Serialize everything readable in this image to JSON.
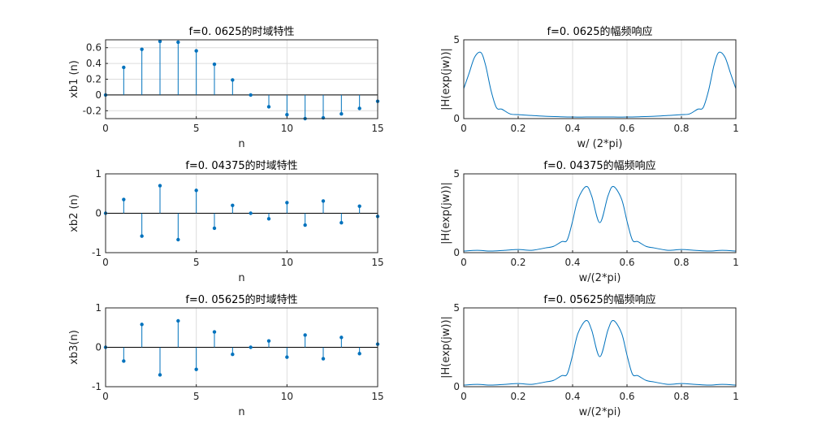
{
  "chart_data": [
    {
      "type": "stem",
      "title": "f=0. 0625的时域特性",
      "xlabel": "n",
      "ylabel": "xb1 (n)",
      "xlim": [
        0,
        15
      ],
      "ylim": [
        -0.3,
        0.7
      ],
      "xticks": [
        0,
        5,
        10,
        15
      ],
      "xticklabels": [
        "0",
        "5",
        "10",
        "15"
      ],
      "yticks": [
        -0.2,
        0,
        0.2,
        0.4,
        0.6
      ],
      "yticklabels": [
        "-0.2",
        "0",
        "0.2",
        "0.4",
        "0.6"
      ],
      "x": [
        0,
        1,
        2,
        3,
        4,
        5,
        6,
        7,
        8,
        9,
        10,
        11,
        12,
        13,
        14,
        15
      ],
      "values": [
        0,
        0.35,
        0.58,
        0.68,
        0.67,
        0.56,
        0.39,
        0.19,
        0,
        -0.15,
        -0.25,
        -0.3,
        -0.29,
        -0.24,
        -0.17,
        -0.08
      ]
    },
    {
      "type": "line",
      "title": "f=0. 0625的幅频响应",
      "xlabel": "w/ (2*pi)",
      "ylabel": "|H(exp(jw))|",
      "xlim": [
        0,
        1
      ],
      "ylim": [
        0,
        5
      ],
      "xticks": [
        0,
        0.2,
        0.4,
        0.6,
        0.8,
        1
      ],
      "xticklabels": [
        "0",
        "0.2",
        "0.4",
        "0.6",
        "0.8",
        "1"
      ],
      "yticks": [
        0,
        5
      ],
      "yticklabels": [
        "0",
        "5"
      ],
      "x": [
        0,
        0.02,
        0.04,
        0.0625,
        0.08,
        0.1,
        0.12,
        0.14,
        0.17,
        0.2,
        0.25,
        0.3,
        0.35,
        0.4,
        0.45,
        0.5,
        0.55,
        0.6,
        0.65,
        0.7,
        0.75,
        0.8,
        0.83,
        0.86,
        0.88,
        0.9,
        0.92,
        0.9375,
        0.96,
        0.98,
        1.0
      ],
      "values": [
        1.9,
        2.9,
        3.9,
        4.2,
        3.4,
        1.8,
        0.7,
        0.6,
        0.3,
        0.25,
        0.2,
        0.15,
        0.12,
        0.1,
        0.1,
        0.1,
        0.1,
        0.1,
        0.12,
        0.15,
        0.2,
        0.25,
        0.3,
        0.6,
        0.7,
        1.8,
        3.4,
        4.2,
        3.9,
        2.9,
        1.9
      ]
    },
    {
      "type": "stem",
      "title": "f=0. 04375的时域特性",
      "xlabel": "n",
      "ylabel": "xb2 (n)",
      "xlim": [
        0,
        15
      ],
      "ylim": [
        -1,
        1
      ],
      "xticks": [
        0,
        5,
        10,
        15
      ],
      "xticklabels": [
        "0",
        "5",
        "10",
        "15"
      ],
      "yticks": [
        -1,
        0,
        1
      ],
      "yticklabels": [
        "-1",
        "0",
        "1"
      ],
      "x": [
        0,
        1,
        2,
        3,
        4,
        5,
        6,
        7,
        8,
        9,
        10,
        11,
        12,
        13,
        14,
        15
      ],
      "values": [
        0,
        0.35,
        -0.58,
        0.7,
        -0.67,
        0.58,
        -0.38,
        0.2,
        0,
        -0.14,
        0.27,
        -0.3,
        0.31,
        -0.24,
        0.18,
        -0.08
      ]
    },
    {
      "type": "line",
      "title": "f=0. 04375的幅频响应",
      "xlabel": "w/(2*pi)",
      "ylabel": "|H(exp(jw))|",
      "xlim": [
        0,
        1
      ],
      "ylim": [
        0,
        5
      ],
      "xticks": [
        0,
        0.2,
        0.4,
        0.6,
        0.8,
        1
      ],
      "xticklabels": [
        "0",
        "0.2",
        "0.4",
        "0.6",
        "0.8",
        "1"
      ],
      "yticks": [
        0,
        5
      ],
      "yticklabels": [
        "0",
        "5"
      ],
      "x": [
        0,
        0.05,
        0.1,
        0.15,
        0.2,
        0.25,
        0.3,
        0.33,
        0.36,
        0.38,
        0.4,
        0.42,
        0.45,
        0.47,
        0.5,
        0.53,
        0.55,
        0.58,
        0.6,
        0.62,
        0.64,
        0.67,
        0.7,
        0.75,
        0.8,
        0.85,
        0.9,
        0.95,
        1.0
      ],
      "values": [
        0.1,
        0.15,
        0.1,
        0.15,
        0.2,
        0.15,
        0.3,
        0.4,
        0.7,
        0.8,
        2.0,
        3.4,
        4.2,
        3.6,
        1.9,
        3.6,
        4.2,
        3.4,
        2.0,
        0.8,
        0.7,
        0.4,
        0.3,
        0.15,
        0.2,
        0.15,
        0.1,
        0.15,
        0.1
      ]
    },
    {
      "type": "stem",
      "title": "f=0. 05625的时域特性",
      "xlabel": "n",
      "ylabel": "xb3(n)",
      "xlim": [
        0,
        15
      ],
      "ylim": [
        -1,
        1
      ],
      "xticks": [
        0,
        5,
        10,
        15
      ],
      "xticklabels": [
        "0",
        "5",
        "10",
        "15"
      ],
      "yticks": [
        -1,
        0,
        1
      ],
      "yticklabels": [
        "-1",
        "0",
        "1"
      ],
      "x": [
        0,
        1,
        2,
        3,
        4,
        5,
        6,
        7,
        8,
        9,
        10,
        11,
        12,
        13,
        14,
        15
      ],
      "values": [
        0,
        -0.35,
        0.58,
        -0.7,
        0.67,
        -0.56,
        0.39,
        -0.18,
        0,
        0.16,
        -0.25,
        0.31,
        -0.29,
        0.25,
        -0.16,
        0.08
      ]
    },
    {
      "type": "line",
      "title": "f=0. 05625的幅频响应",
      "xlabel": "w/(2*pi)",
      "ylabel": "|H(exp(jw))|",
      "xlim": [
        0,
        1
      ],
      "ylim": [
        0,
        5
      ],
      "xticks": [
        0,
        0.2,
        0.4,
        0.6,
        0.8,
        1
      ],
      "xticklabels": [
        "0",
        "0.2",
        "0.4",
        "0.6",
        "0.8",
        "1"
      ],
      "yticks": [
        0,
        5
      ],
      "yticklabels": [
        "0",
        "5"
      ],
      "x": [
        0,
        0.05,
        0.1,
        0.15,
        0.2,
        0.25,
        0.3,
        0.33,
        0.36,
        0.38,
        0.4,
        0.42,
        0.45,
        0.47,
        0.5,
        0.53,
        0.55,
        0.58,
        0.6,
        0.62,
        0.64,
        0.67,
        0.7,
        0.75,
        0.8,
        0.85,
        0.9,
        0.95,
        1.0
      ],
      "values": [
        0.1,
        0.15,
        0.1,
        0.15,
        0.2,
        0.15,
        0.3,
        0.4,
        0.7,
        0.8,
        2.0,
        3.4,
        4.2,
        3.6,
        1.9,
        3.6,
        4.2,
        3.4,
        2.0,
        0.8,
        0.7,
        0.4,
        0.3,
        0.15,
        0.2,
        0.15,
        0.1,
        0.15,
        0.1
      ]
    }
  ]
}
